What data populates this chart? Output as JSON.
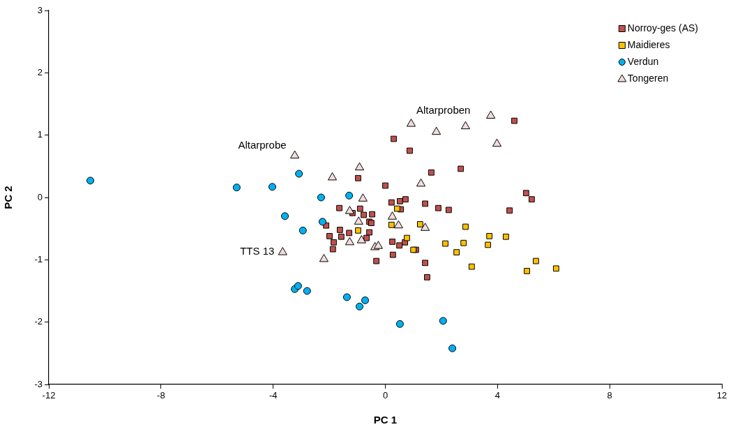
{
  "chart_data": {
    "type": "scatter",
    "xlabel": "PC 1",
    "ylabel": "PC 2",
    "xlim": [
      -12,
      12
    ],
    "xticks": [
      -12,
      -8,
      -4,
      0,
      4,
      8,
      12
    ],
    "ylim": [
      -3,
      3
    ],
    "yticks": [
      -3,
      -2,
      -1,
      0,
      1,
      2,
      3
    ],
    "grid": false,
    "legend": "top right",
    "annotations": [
      {
        "text": "Altarprobe",
        "x": -3.23,
        "y": 0.67
      },
      {
        "text": "Altarproben",
        "x": 1.82,
        "y": 1.05
      },
      {
        "text": "TTS 13",
        "x": -3.66,
        "y": -0.88
      }
    ],
    "series": [
      {
        "name": "Norroy-ges (AS)",
        "color": "#c0504d",
        "marker": "square",
        "x": [
          0.3,
          0.87,
          2.69,
          1.64,
          -0.97,
          0.0,
          0.22,
          0.52,
          0.72,
          1.42,
          1.89,
          2.26,
          -1.64,
          -0.9,
          -0.77,
          -0.47,
          -1.17,
          -0.57,
          -0.5,
          -2.11,
          -1.62,
          -1.29,
          -0.57,
          -1.99,
          -1.57,
          -0.87,
          -0.67,
          -1.84,
          -1.87,
          0.25,
          0.5,
          0.7,
          1.09,
          0.27,
          -0.32,
          1.42,
          1.49,
          0.55,
          4.6,
          5.02,
          5.22,
          4.43
        ],
        "values": [
          0.94,
          0.75,
          0.46,
          0.4,
          0.31,
          0.19,
          -0.08,
          -0.06,
          -0.03,
          -0.1,
          -0.17,
          -0.2,
          -0.17,
          -0.18,
          -0.28,
          -0.27,
          -0.25,
          -0.39,
          -0.41,
          -0.45,
          -0.52,
          -0.57,
          -0.56,
          -0.62,
          -0.63,
          null,
          -0.65,
          -0.72,
          -0.83,
          -0.71,
          -0.77,
          -0.72,
          -0.84,
          -0.92,
          -1.02,
          -1.05,
          -1.28,
          -0.19,
          1.23,
          0.07,
          -0.03,
          -0.21
        ]
      },
      {
        "name": "Maidieres",
        "color": "#ffc000",
        "marker": "square",
        "x": [
          0.42,
          0.22,
          -0.97,
          1.24,
          2.86,
          0.77,
          1.0,
          2.14,
          2.79,
          3.71,
          4.3,
          3.66,
          2.54,
          3.08,
          5.37,
          5.05,
          6.09
        ],
        "values": [
          -0.18,
          -0.44,
          -0.53,
          -0.43,
          -0.47,
          -0.65,
          -0.84,
          -0.74,
          -0.73,
          -0.62,
          -0.63,
          -0.76,
          -0.88,
          -1.11,
          -1.02,
          -1.18,
          -1.14
        ]
      },
      {
        "name": "Verdun",
        "color": "#00b0f0",
        "marker": "circle",
        "x": [
          -10.52,
          -5.3,
          -4.03,
          -3.08,
          -3.58,
          -2.94,
          -2.29,
          -1.29,
          -2.24,
          -3.23,
          -3.11,
          -2.79,
          -1.37,
          -0.72,
          -0.92,
          0.52,
          2.06,
          2.39
        ],
        "values": [
          0.27,
          0.16,
          0.17,
          0.38,
          -0.3,
          -0.53,
          0.0,
          0.03,
          -0.39,
          -1.47,
          -1.42,
          -1.5,
          -1.6,
          -1.65,
          -1.75,
          -2.03,
          -1.98,
          -2.42
        ]
      },
      {
        "name": "Tongeren",
        "color": "#f2dcdb",
        "marker": "triangle",
        "x": [
          -3.23,
          -0.92,
          -1.89,
          -0.8,
          -1.27,
          -0.95,
          0.25,
          0.47,
          1.42,
          1.27,
          -1.27,
          -0.85,
          -0.37,
          -0.25,
          -3.66,
          -2.19,
          0.92,
          1.82,
          2.86,
          3.76,
          3.98
        ],
        "values": [
          0.67,
          0.48,
          0.32,
          -0.02,
          -0.22,
          -0.39,
          -0.31,
          -0.45,
          -0.49,
          0.22,
          -0.72,
          -0.69,
          -0.8,
          -0.78,
          -0.88,
          -0.99,
          1.18,
          1.05,
          1.14,
          1.31,
          0.86
        ]
      }
    ]
  }
}
